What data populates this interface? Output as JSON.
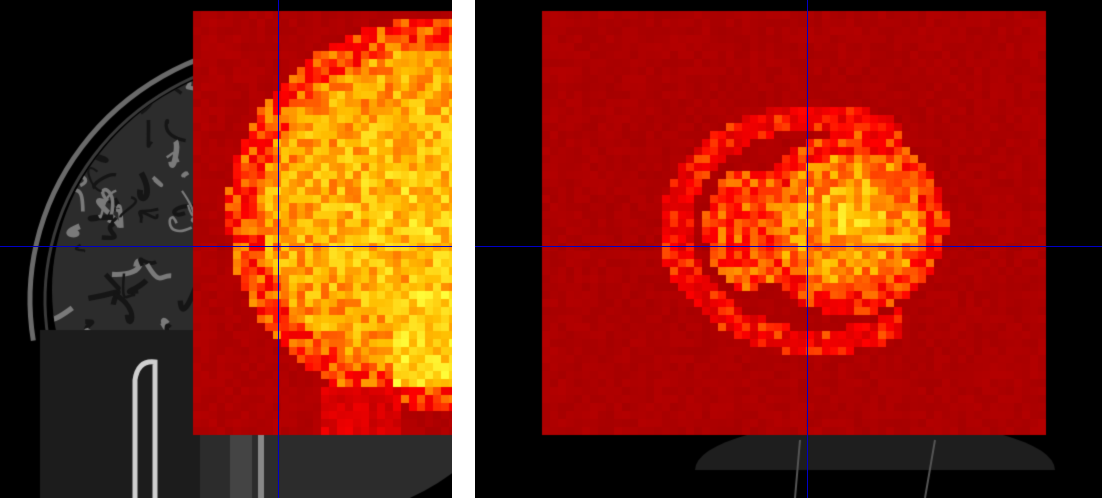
{
  "viewer": {
    "panes": [
      {
        "id": "sagittal",
        "background_image": "t1-anatomical",
        "overlay_image": "activation-heatmap",
        "colormap": "hot"
      },
      {
        "id": "coronal",
        "background_image": "t1-anatomical",
        "overlay_image": "activation-heatmap",
        "colormap": "hot"
      }
    ],
    "colors": {
      "background": "#000000",
      "separator": "#ffffff",
      "crosshair": "#0000c8",
      "overlay_low": "#a00000",
      "overlay_mid": "#ff2a00",
      "overlay_high": "#ffff40"
    }
  }
}
